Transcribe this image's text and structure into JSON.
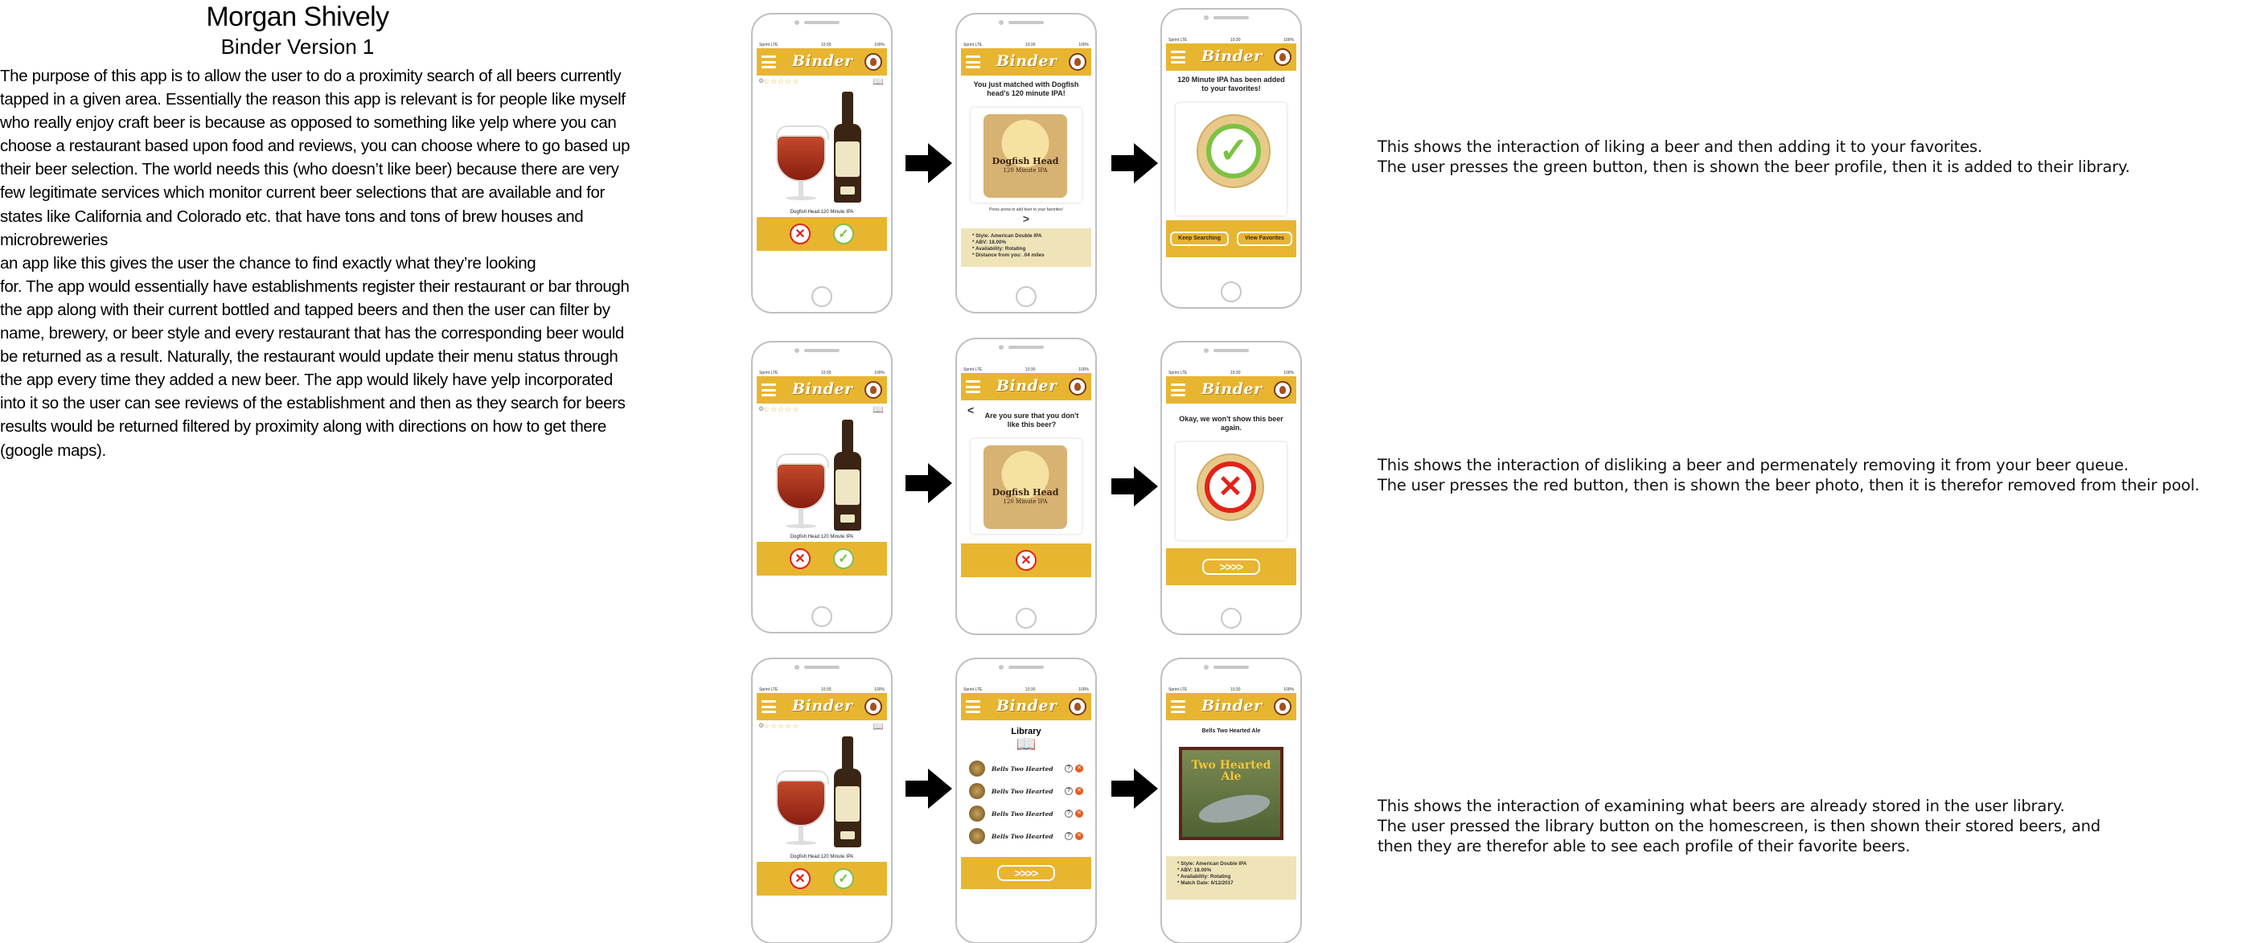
{
  "header": {
    "author": "Morgan Shively",
    "subtitle": "Binder Version 1"
  },
  "description": "The purpose of this app is to allow the user to do a proximity search of all beers currently\ntapped in a given area. Essentially the reason this app is relevant is for people like myself\nwho really enjoy craft beer is because as opposed to something like yelp where you can\nchoose a restaurant based upon food and reviews, you can choose where to go based up\ntheir beer selection. The world needs this (who doesn’t like beer) because there are very\nfew legitimate services which monitor current beer selections that are available and for\nstates like California and Colorado etc. that have tons and tons of brew houses and microbreweries\nan app like this gives the user the chance to find exactly what they’re looking\nfor. The app would essentially have establishments register their restaurant or bar through\nthe app along with their current bottled and tapped beers and then the user can filter by\nname, brewery, or beer style and every restaurant that has the corresponding beer would\nbe returned as a result. Naturally, the restaurant would update their menu status through\nthe app every time they added a new beer. The app would likely have yelp incorporated\ninto it so the user can see reviews of the establishment and then as they search for beers\nresults would be returned filtered by proximity along with directions on how to get there\n(google maps).",
  "captions": {
    "like_1": "This shows the interaction of liking a beer and then adding it to your favorites.",
    "like_2": "The user presses the green button, then is shown the beer profile, then it is added to their library.",
    "dislike_1": "This shows the interaction of disliking a beer and permenately removing it from your beer queue.",
    "dislike_2": "The user presses the red button, then is shown the beer photo, then it is therefor removed from their pool.",
    "library_1": "This shows the interaction of examining what beers are already stored in the user library.",
    "library_2": "The user pressed the library button on the homescreen, is then shown their stored beers, and",
    "library_3": "then they are therefor able to see each profile of their favorite beers."
  },
  "app": {
    "logo": "Binder",
    "status_left": "Sprint LTE",
    "status_mid": "10:30",
    "status_right": "100%",
    "stars": "☆☆☆☆☆",
    "beer_name": "Dogfish Head 120 Minute IPA",
    "dfh_title": "Dogfish Head",
    "dfh_sub": "120 Minute IPA",
    "match_msg": "You just matched with Dogfish head's 120 minute IPA!",
    "press_arrow": "Press arrow to add beer to your favorites!",
    "info_profile": "* Style: American Double IPA\n* ABV: 18.00%\n* Availability: Rotating\n* Distance from you: .04 miles",
    "added_msg": "120 Minute IPA has been added to your favorites!",
    "keep_searching": "Keep Searching",
    "view_favorites": "View Favorites",
    "confirm_msg": "Are you sure that you don't like this beer?",
    "okay_msg": "Okay, we won't show this beer again.",
    "arrows": ">>>>",
    "library_title": "Library",
    "library_items": [
      "Bells Two Hearted",
      "Bells Two Hearted",
      "Bells Two Hearted",
      "Bells Two Hearted"
    ],
    "profile_title": "Bells Two Hearted Ale",
    "two_hearted_art": "Two Hearted Ale",
    "info_bells": "* Style: American Double IPA\n* ABV: 18.00%\n* Availability: Rotating\n* Match Date: 6/12/2017"
  },
  "colors": {
    "accent": "#e8b531",
    "like": "#7cc243",
    "dislike": "#e2231a"
  }
}
